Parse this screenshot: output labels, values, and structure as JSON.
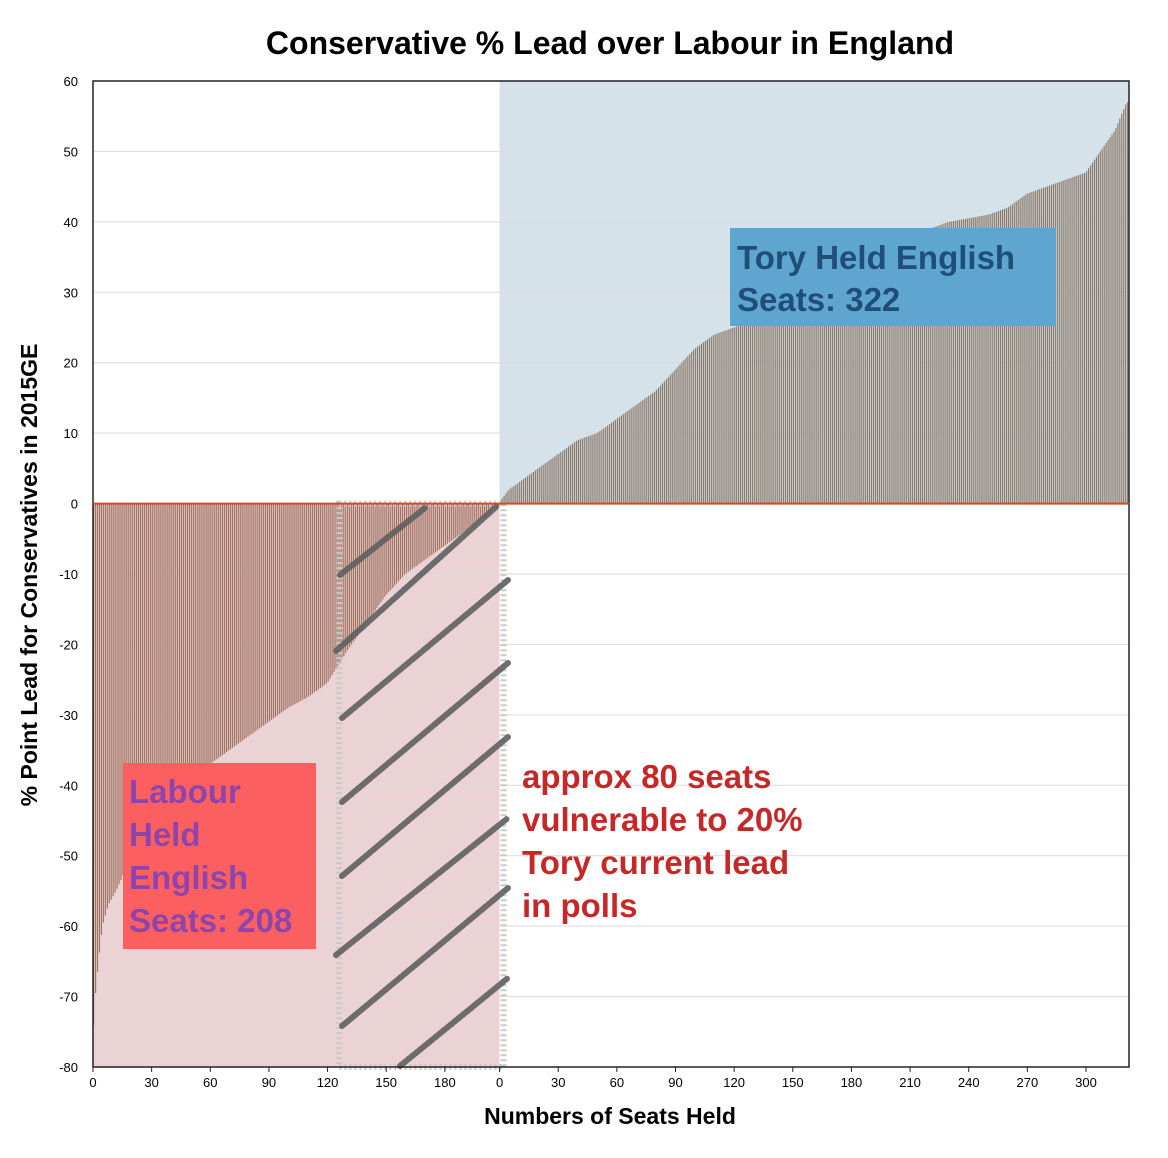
{
  "chart_data": {
    "type": "bar",
    "title": "Conservative % Lead over Labour in England",
    "xlabel": "Numbers of Seats Held",
    "ylabel": "% Point Lead for Conservatives  in  2015GE",
    "ylim": [
      -80,
      60
    ],
    "yticks": [
      "60",
      "50",
      "40",
      "30",
      "20",
      "10",
      "0",
      "-10",
      "-20",
      "-30",
      "-40",
      "-50",
      "-60",
      "-70",
      "-80"
    ],
    "xticks_labour": [
      "0",
      "30",
      "60",
      "90",
      "120",
      "150",
      "180"
    ],
    "xticks_tory": [
      "0",
      "30",
      "60",
      "90",
      "120",
      "150",
      "180",
      "210",
      "240",
      "270",
      "300"
    ],
    "grid": true,
    "series": [
      {
        "seats": 208,
        "color": "#a27462",
        "lead_profile": [
          [
            0,
            -77
          ],
          [
            1,
            -71
          ],
          [
            3,
            -65
          ],
          [
            5,
            -60
          ],
          [
            8,
            -57
          ],
          [
            12,
            -55
          ],
          [
            20,
            -50
          ],
          [
            30,
            -46
          ],
          [
            40,
            -43
          ],
          [
            50,
            -40
          ],
          [
            60,
            -37
          ],
          [
            70,
            -35
          ],
          [
            80,
            -33
          ],
          [
            90,
            -31
          ],
          [
            100,
            -29
          ],
          [
            110,
            -27.5
          ],
          [
            120,
            -25.5
          ],
          [
            130,
            -21
          ],
          [
            140,
            -17
          ],
          [
            150,
            -13
          ],
          [
            160,
            -10
          ],
          [
            170,
            -8
          ],
          [
            180,
            -6
          ],
          [
            190,
            -4
          ],
          [
            200,
            -2
          ],
          [
            208,
            -0.3
          ]
        ]
      },
      {
        "seats": 322,
        "color": "#8c7b6b",
        "lead_profile": [
          [
            0,
            0.2
          ],
          [
            5,
            2
          ],
          [
            10,
            3
          ],
          [
            20,
            5
          ],
          [
            30,
            7
          ],
          [
            40,
            9
          ],
          [
            50,
            10
          ],
          [
            60,
            12
          ],
          [
            70,
            14
          ],
          [
            80,
            16
          ],
          [
            90,
            19
          ],
          [
            100,
            22
          ],
          [
            110,
            24
          ],
          [
            120,
            25
          ],
          [
            130,
            26
          ],
          [
            140,
            27
          ],
          [
            150,
            28
          ],
          [
            160,
            30
          ],
          [
            170,
            32
          ],
          [
            180,
            34
          ],
          [
            190,
            36
          ],
          [
            200,
            37
          ],
          [
            210,
            38
          ],
          [
            220,
            39
          ],
          [
            230,
            40
          ],
          [
            240,
            40.5
          ],
          [
            250,
            41
          ],
          [
            260,
            42
          ],
          [
            270,
            44
          ],
          [
            280,
            45
          ],
          [
            290,
            46
          ],
          [
            300,
            47
          ],
          [
            305,
            49
          ],
          [
            310,
            51
          ],
          [
            315,
            53
          ],
          [
            318,
            55
          ],
          [
            321,
            57
          ],
          [
            322,
            57
          ]
        ]
      }
    ]
  },
  "annotations": {
    "tory": [
      "Tory Held English",
      "Seats: 322"
    ],
    "labour": [
      "Labour",
      "Held",
      "English",
      "Seats: 208"
    ],
    "vulnerable": [
      "approx 80 seats",
      "vulnerable to 20%",
      "Tory current lead",
      "in polls"
    ]
  },
  "colors": {
    "tory_region": "#d5e2ea",
    "labour_region": "#ebd3d5",
    "tory_box": "#5ea6d0",
    "labour_box": "#fc5f5f",
    "hatch": "#606060"
  }
}
